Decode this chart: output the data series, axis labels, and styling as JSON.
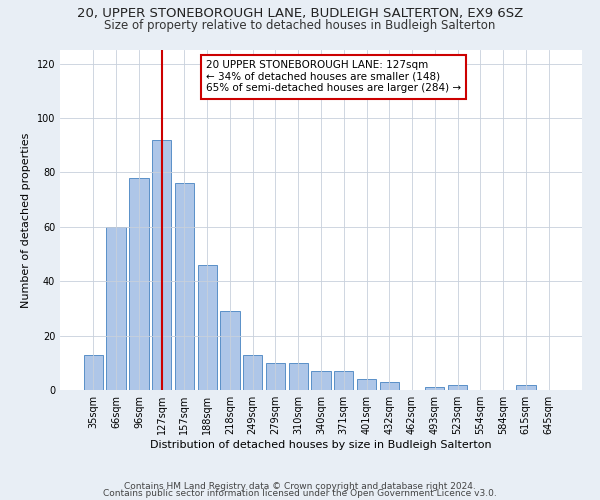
{
  "title": "20, UPPER STONEBOROUGH LANE, BUDLEIGH SALTERTON, EX9 6SZ",
  "subtitle": "Size of property relative to detached houses in Budleigh Salterton",
  "xlabel": "Distribution of detached houses by size in Budleigh Salterton",
  "ylabel": "Number of detached properties",
  "footer1": "Contains HM Land Registry data © Crown copyright and database right 2024.",
  "footer2": "Contains public sector information licensed under the Open Government Licence v3.0.",
  "categories": [
    "35sqm",
    "66sqm",
    "96sqm",
    "127sqm",
    "157sqm",
    "188sqm",
    "218sqm",
    "249sqm",
    "279sqm",
    "310sqm",
    "340sqm",
    "371sqm",
    "401sqm",
    "432sqm",
    "462sqm",
    "493sqm",
    "523sqm",
    "554sqm",
    "584sqm",
    "615sqm",
    "645sqm"
  ],
  "values": [
    13,
    60,
    78,
    92,
    76,
    46,
    29,
    13,
    10,
    10,
    7,
    7,
    4,
    3,
    0,
    1,
    2,
    0,
    0,
    2,
    0
  ],
  "bar_color": "#aec6e8",
  "bar_edge_color": "#5a90c8",
  "vline_x": 3,
  "vline_color": "#cc0000",
  "annotation_text": "20 UPPER STONEBOROUGH LANE: 127sqm\n← 34% of detached houses are smaller (148)\n65% of semi-detached houses are larger (284) →",
  "annotation_box_color": "#ffffff",
  "annotation_box_edge": "#cc0000",
  "ylim": [
    0,
    125
  ],
  "yticks": [
    0,
    20,
    40,
    60,
    80,
    100,
    120
  ],
  "bg_color": "#e8eef5",
  "plot_bg_color": "#ffffff",
  "grid_color": "#c8d0dc",
  "title_fontsize": 9.5,
  "subtitle_fontsize": 8.5,
  "axis_label_fontsize": 8,
  "tick_fontsize": 7,
  "footer_fontsize": 6.5,
  "annotation_fontsize": 7.5
}
